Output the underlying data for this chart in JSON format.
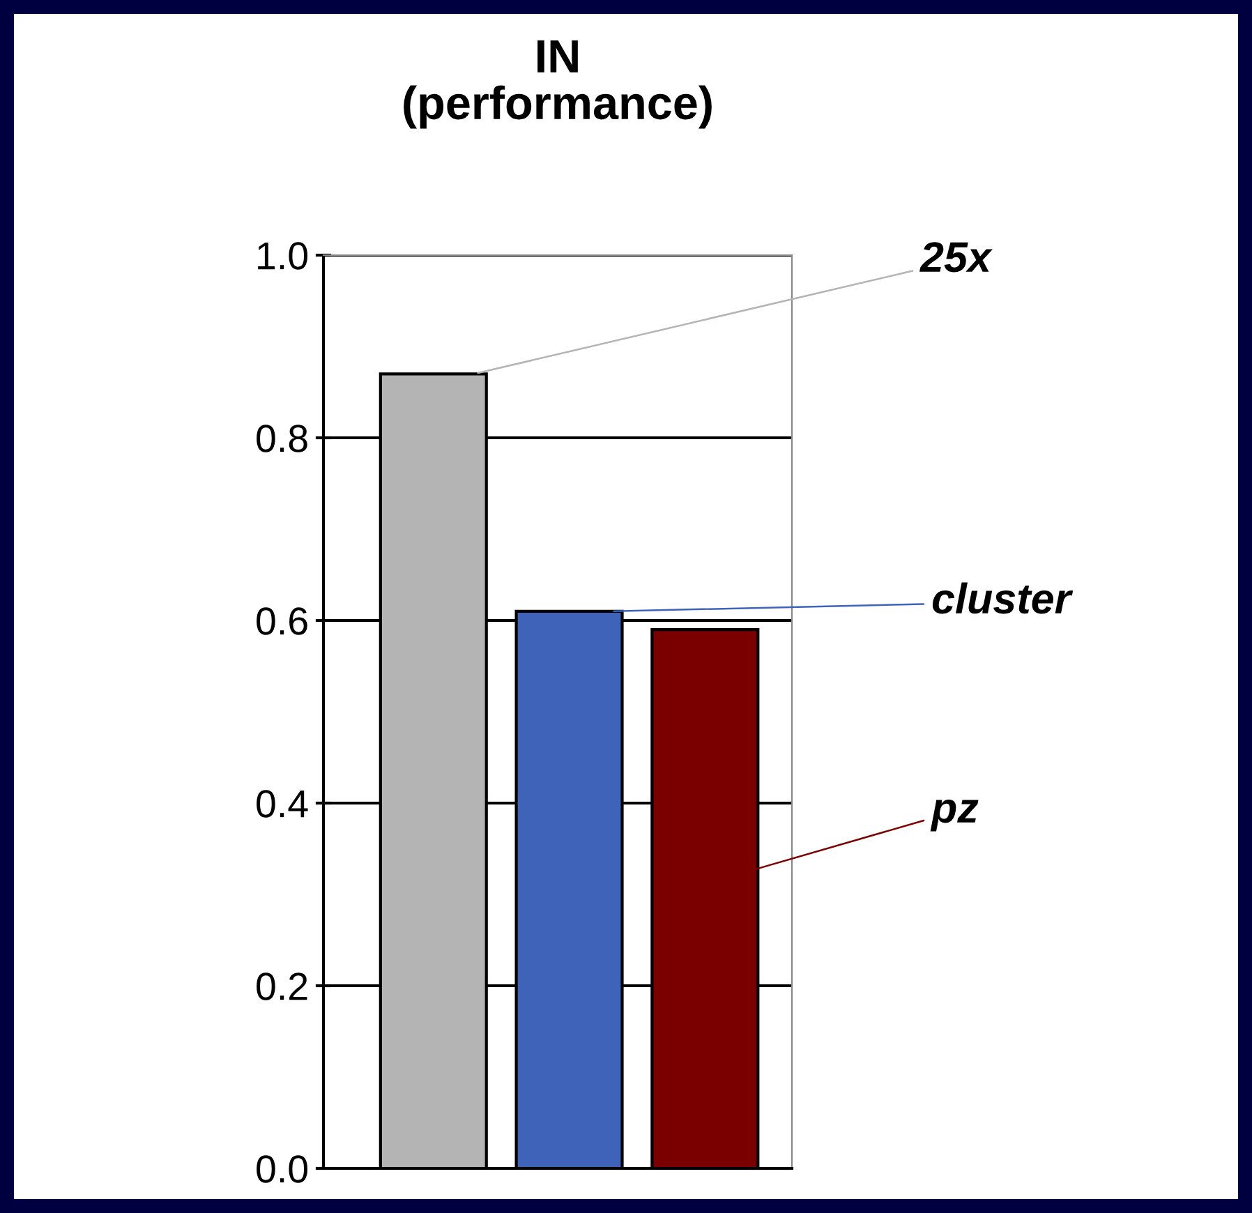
{
  "chart_data": {
    "type": "bar",
    "title": "IN\n(performance)",
    "categories": [
      null,
      null,
      null
    ],
    "series": [
      {
        "name": "25x",
        "color": "#b4b4b4",
        "values": [
          0.87,
          null,
          null
        ]
      },
      {
        "name": "cluster",
        "color": "#3f63b8",
        "values": [
          null,
          0.61,
          null
        ]
      },
      {
        "name": "pz",
        "color": "#7a0000",
        "values": [
          null,
          null,
          0.59
        ]
      }
    ],
    "ylim": [
      0,
      1
    ],
    "yticks": [
      {
        "value": 0,
        "label": "0.0"
      },
      0.2,
      0.4,
      0.6,
      0.8,
      {
        "value": 1,
        "label": "1.0"
      }
    ],
    "grid": "y",
    "legend": false
  }
}
